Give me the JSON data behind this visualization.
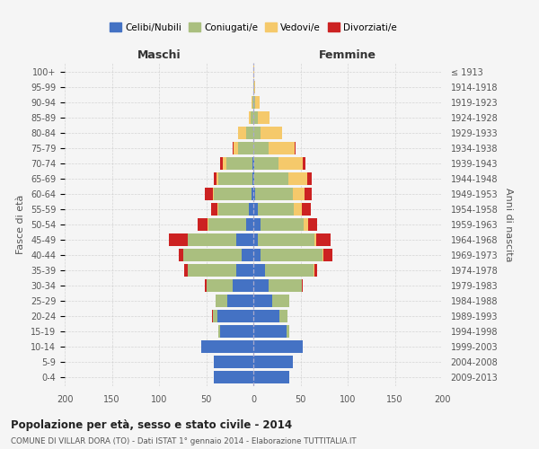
{
  "age_groups": [
    "0-4",
    "5-9",
    "10-14",
    "15-19",
    "20-24",
    "25-29",
    "30-34",
    "35-39",
    "40-44",
    "45-49",
    "50-54",
    "55-59",
    "60-64",
    "65-69",
    "70-74",
    "75-79",
    "80-84",
    "85-89",
    "90-94",
    "95-99",
    "100+"
  ],
  "birth_years": [
    "2009-2013",
    "2004-2008",
    "1999-2003",
    "1994-1998",
    "1989-1993",
    "1984-1988",
    "1979-1983",
    "1974-1978",
    "1969-1973",
    "1964-1968",
    "1959-1963",
    "1954-1958",
    "1949-1953",
    "1944-1948",
    "1939-1943",
    "1934-1938",
    "1929-1933",
    "1924-1928",
    "1919-1923",
    "1914-1918",
    "≤ 1913"
  ],
  "males": {
    "celibi": [
      42,
      42,
      55,
      35,
      38,
      28,
      22,
      18,
      12,
      18,
      8,
      5,
      2,
      1,
      1,
      0,
      0,
      0,
      0,
      0,
      0
    ],
    "coniugati": [
      0,
      0,
      0,
      2,
      5,
      12,
      28,
      52,
      62,
      52,
      40,
      32,
      40,
      36,
      28,
      16,
      8,
      3,
      1,
      0,
      0
    ],
    "vedovi": [
      0,
      0,
      0,
      0,
      0,
      0,
      0,
      0,
      0,
      0,
      1,
      1,
      1,
      2,
      3,
      5,
      8,
      2,
      1,
      0,
      0
    ],
    "divorziati": [
      0,
      0,
      0,
      0,
      1,
      0,
      1,
      3,
      5,
      20,
      10,
      7,
      8,
      3,
      3,
      1,
      0,
      0,
      0,
      0,
      0
    ]
  },
  "females": {
    "nubili": [
      38,
      42,
      52,
      35,
      28,
      20,
      16,
      12,
      8,
      5,
      8,
      5,
      2,
      1,
      1,
      0,
      0,
      0,
      0,
      0,
      0
    ],
    "coniugate": [
      0,
      0,
      0,
      3,
      8,
      18,
      35,
      52,
      65,
      60,
      45,
      38,
      40,
      36,
      26,
      16,
      8,
      5,
      2,
      1,
      0
    ],
    "vedove": [
      0,
      0,
      0,
      0,
      0,
      0,
      0,
      1,
      1,
      2,
      5,
      8,
      12,
      20,
      25,
      28,
      22,
      12,
      5,
      1,
      1
    ],
    "divorziate": [
      0,
      0,
      0,
      0,
      0,
      0,
      1,
      3,
      10,
      15,
      10,
      10,
      8,
      5,
      3,
      1,
      0,
      0,
      0,
      0,
      0
    ]
  },
  "colors": {
    "celibi": "#4472C4",
    "coniugati": "#AABF7F",
    "vedovi": "#F5C96B",
    "divorziati": "#CC2222"
  },
  "title": "Popolazione per età, sesso e stato civile - 2014",
  "subtitle": "COMUNE DI VILLAR DORA (TO) - Dati ISTAT 1° gennaio 2014 - Elaborazione TUTTITALIA.IT",
  "xlabel_left": "Maschi",
  "xlabel_right": "Femmine",
  "ylabel_left": "Fasce di età",
  "ylabel_right": "Anni di nascita",
  "xlim": 200,
  "legend_labels": [
    "Celibi/Nubili",
    "Coniugati/e",
    "Vedovi/e",
    "Divorziati/e"
  ],
  "background_color": "#f5f5f5",
  "grid_color": "#cccccc"
}
